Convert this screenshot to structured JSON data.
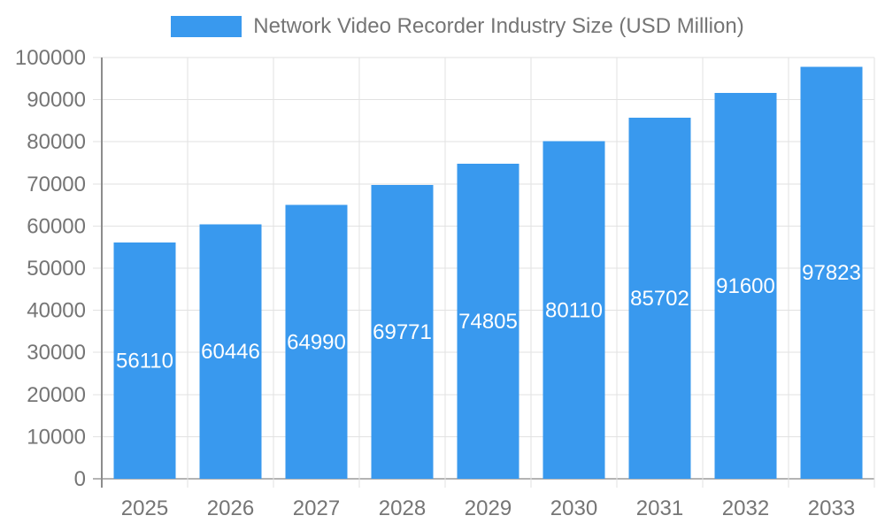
{
  "chart_data": {
    "type": "bar",
    "title": "",
    "legend_label": "Network Video Recorder Industry Size (USD Million)",
    "legend_position": "top",
    "categories": [
      "2025",
      "2026",
      "2027",
      "2028",
      "2029",
      "2030",
      "2031",
      "2032",
      "2033"
    ],
    "values": [
      56110,
      60446,
      64990,
      69771,
      74805,
      80110,
      85702,
      91600,
      97823
    ],
    "xlabel": "",
    "ylabel": "",
    "ylim": [
      0,
      100000
    ],
    "ytick_step": 10000,
    "ytick_labels": [
      "0",
      "10000",
      "20000",
      "30000",
      "40000",
      "50000",
      "60000",
      "70000",
      "80000",
      "90000",
      "100000"
    ],
    "grid": true,
    "value_labels_inside_bars": true,
    "colors": {
      "bar": "#3999EE",
      "value_label": "#ffffff",
      "tick_text": "#757575",
      "legend_text": "#757575",
      "gridline": "#e2e2e2",
      "y_axis_line": "#8c8c8c",
      "x_axis_line": "#b4b4b4",
      "background": "#ffffff"
    }
  }
}
